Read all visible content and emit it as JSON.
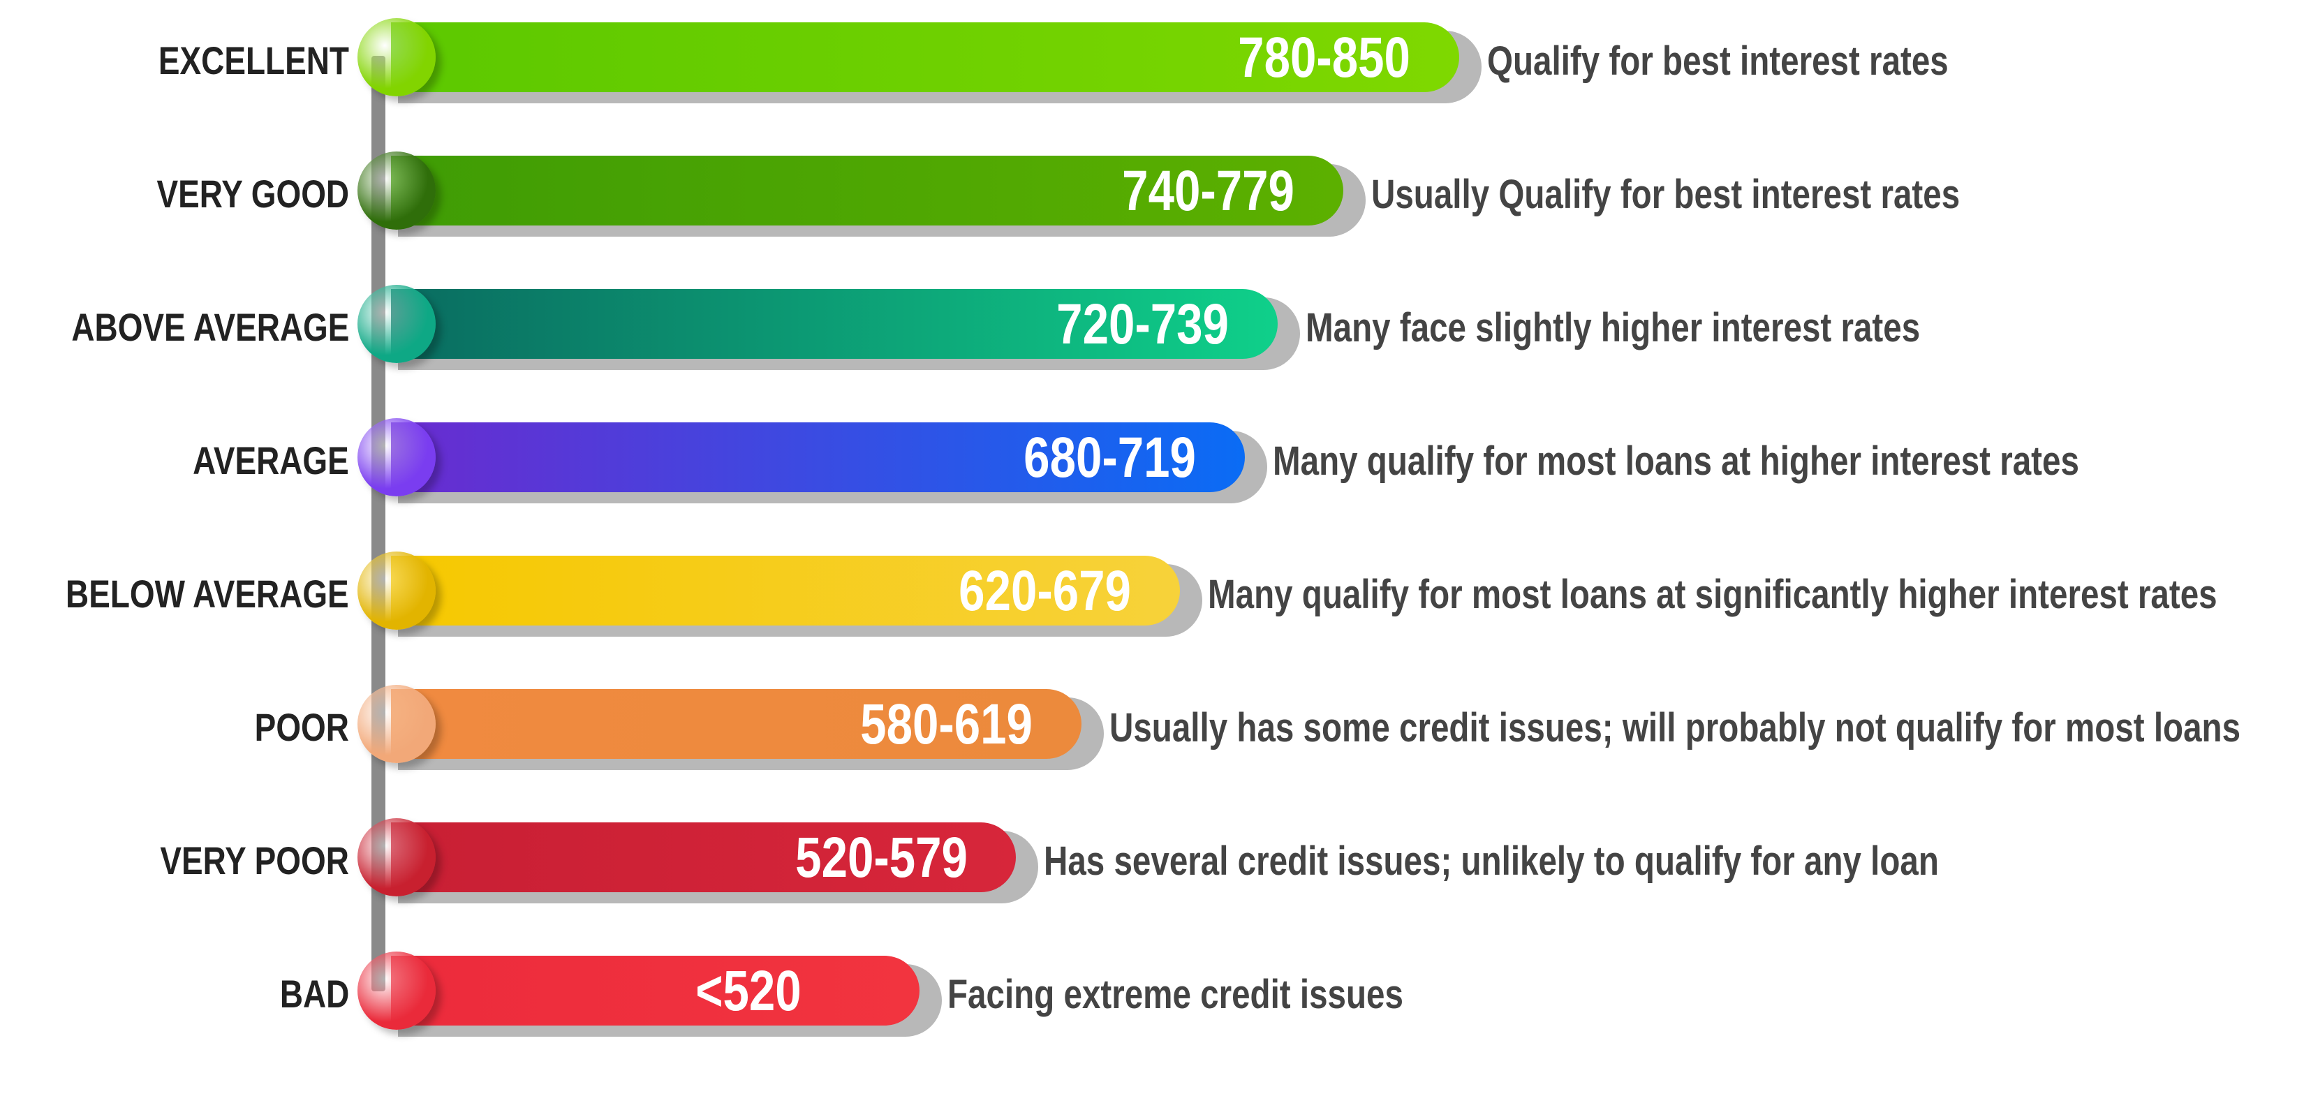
{
  "chart_data": {
    "type": "bar",
    "orientation": "horizontal",
    "categories": [
      "EXCELLENT",
      "VERY GOOD",
      "ABOVE AVERAGE",
      "AVERAGE",
      "BELOW AVERAGE",
      "POOR",
      "VERY POOR",
      "BAD"
    ],
    "ranges": [
      "780-850",
      "740-779",
      "720-739",
      "680-719",
      "620-679",
      "580-619",
      "520-579",
      "<520"
    ],
    "descriptions": [
      "Qualify for best interest rates",
      "Usually Qualify for best interest rates",
      "Many face slightly higher interest rates",
      "Many qualify for most loans at higher interest rates",
      "Many qualify for most loans at significantly higher interest rates",
      "Usually has some credit issues; will probably not qualify for most loans",
      "Has several credit issues; unlikely to qualify for any loan",
      "Facing extreme credit issues"
    ],
    "values": [
      850,
      779,
      739,
      719,
      679,
      619,
      579,
      520
    ],
    "xlim": [
      200,
      850
    ],
    "colors": [
      [
        "#5cc800",
        "#7fd800"
      ],
      [
        "#3f9c05",
        "#5cb000"
      ],
      [
        "#0a6b60",
        "#0fd08a"
      ],
      [
        "#6a2bcf",
        "#0a6cf5"
      ],
      [
        "#f6c800",
        "#f7d23a"
      ],
      [
        "#f08a40",
        "#ec8a3c"
      ],
      [
        "#c81f34",
        "#d7263a"
      ],
      [
        "#ec2b3c",
        "#f2343f"
      ]
    ],
    "circle_colors": [
      "#82d400",
      "#2f6e0a",
      "#0ea885",
      "#7a3df0",
      "#e2b400",
      "#f2a878",
      "#c8202f",
      "#ea2a3a"
    ]
  }
}
